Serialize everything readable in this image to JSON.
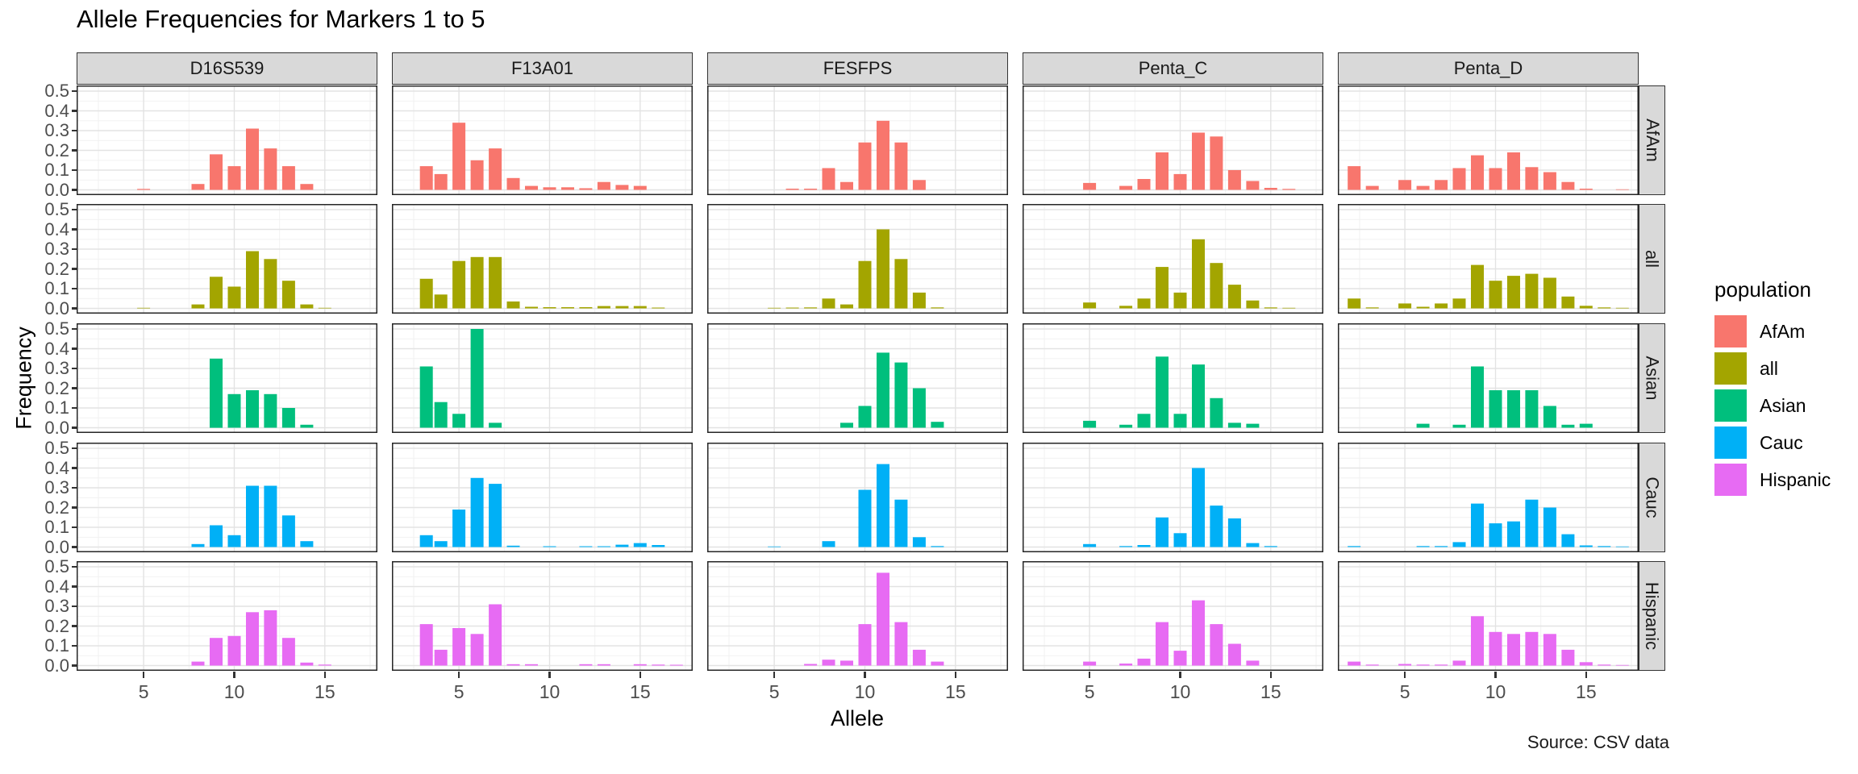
{
  "chart_data": {
    "type": "bar",
    "title": "Allele Frequencies for Markers 1 to 5",
    "xlabel": "Allele",
    "ylabel": "Frequency",
    "caption": "Source: CSV data",
    "legend_title": "population",
    "legend_position": "right",
    "grid": true,
    "facet_cols": [
      "D16S539",
      "F13A01",
      "FESFPS",
      "Penta_C",
      "Penta_D"
    ],
    "facet_rows": [
      "AfAm",
      "all",
      "Asian",
      "Cauc",
      "Hispanic"
    ],
    "colors": {
      "AfAm": "#F8766D",
      "all": "#A3A500",
      "Asian": "#00BF7D",
      "Cauc": "#00B0F6",
      "Hispanic": "#E76BF3"
    },
    "x_ticks": [
      5,
      10,
      15
    ],
    "y_ticks": [
      0.0,
      0.1,
      0.2,
      0.3,
      0.4,
      0.5
    ],
    "xlim": [
      1.3,
      17.9
    ],
    "ylim": [
      0,
      0.525
    ],
    "panels": {
      "D16S539": {
        "AfAm": {
          "alleles": [
            5,
            8,
            9,
            10,
            11,
            12,
            13,
            14
          ],
          "freqs": [
            0.005,
            0.03,
            0.18,
            0.12,
            0.31,
            0.21,
            0.12,
            0.03
          ]
        },
        "all": {
          "alleles": [
            5,
            8,
            9,
            10,
            11,
            12,
            13,
            14,
            15
          ],
          "freqs": [
            0.003,
            0.02,
            0.16,
            0.11,
            0.29,
            0.25,
            0.14,
            0.02,
            0.003
          ]
        },
        "Asian": {
          "alleles": [
            9,
            10,
            11,
            12,
            13,
            14
          ],
          "freqs": [
            0.35,
            0.17,
            0.19,
            0.17,
            0.1,
            0.015
          ]
        },
        "Cauc": {
          "alleles": [
            8,
            9,
            10,
            11,
            12,
            13,
            14
          ],
          "freqs": [
            0.015,
            0.11,
            0.06,
            0.31,
            0.31,
            0.16,
            0.03
          ]
        },
        "Hispanic": {
          "alleles": [
            8,
            9,
            10,
            11,
            12,
            13,
            14,
            15
          ],
          "freqs": [
            0.02,
            0.14,
            0.15,
            0.27,
            0.28,
            0.14,
            0.015,
            0.005
          ]
        }
      },
      "F13A01": {
        "AfAm": {
          "alleles": [
            3.2,
            4,
            5,
            6,
            7,
            8,
            9,
            10,
            11,
            12,
            13,
            14,
            15
          ],
          "freqs": [
            0.12,
            0.08,
            0.34,
            0.15,
            0.21,
            0.06,
            0.02,
            0.013,
            0.013,
            0.008,
            0.04,
            0.025,
            0.02
          ]
        },
        "all": {
          "alleles": [
            3.2,
            4,
            5,
            6,
            7,
            8,
            9,
            10,
            11,
            12,
            13,
            14,
            15,
            16
          ],
          "freqs": [
            0.15,
            0.07,
            0.24,
            0.26,
            0.26,
            0.035,
            0.008,
            0.006,
            0.006,
            0.006,
            0.012,
            0.012,
            0.012,
            0.004
          ]
        },
        "Asian": {
          "alleles": [
            3.2,
            4,
            5,
            6,
            7
          ],
          "freqs": [
            0.31,
            0.13,
            0.07,
            0.5,
            0.025
          ]
        },
        "Cauc": {
          "alleles": [
            3.2,
            4,
            5,
            6,
            7,
            8,
            10,
            12,
            13,
            14,
            15,
            16
          ],
          "freqs": [
            0.06,
            0.03,
            0.19,
            0.35,
            0.32,
            0.007,
            0.004,
            0.004,
            0.004,
            0.012,
            0.02,
            0.01
          ]
        },
        "Hispanic": {
          "alleles": [
            3.2,
            4,
            5,
            6,
            7,
            8,
            9,
            12,
            13,
            15,
            16,
            17
          ],
          "freqs": [
            0.21,
            0.08,
            0.19,
            0.16,
            0.31,
            0.007,
            0.007,
            0.007,
            0.007,
            0.007,
            0.005,
            0.004
          ]
        }
      },
      "FESFPS": {
        "AfAm": {
          "alleles": [
            6,
            7,
            8,
            9,
            10,
            11,
            12,
            13
          ],
          "freqs": [
            0.006,
            0.006,
            0.11,
            0.04,
            0.24,
            0.35,
            0.24,
            0.05
          ]
        },
        "all": {
          "alleles": [
            5,
            6,
            7,
            8,
            9,
            10,
            11,
            12,
            13,
            14
          ],
          "freqs": [
            0.003,
            0.004,
            0.005,
            0.05,
            0.02,
            0.24,
            0.4,
            0.25,
            0.08,
            0.005
          ]
        },
        "Asian": {
          "alleles": [
            9,
            10,
            11,
            12,
            13,
            14
          ],
          "freqs": [
            0.025,
            0.11,
            0.38,
            0.33,
            0.2,
            0.03
          ]
        },
        "Cauc": {
          "alleles": [
            5,
            8,
            10,
            11,
            12,
            13,
            14
          ],
          "freqs": [
            0.003,
            0.03,
            0.29,
            0.42,
            0.24,
            0.05,
            0.005
          ]
        },
        "Hispanic": {
          "alleles": [
            7,
            8,
            9,
            10,
            11,
            12,
            13,
            14
          ],
          "freqs": [
            0.008,
            0.03,
            0.025,
            0.21,
            0.47,
            0.22,
            0.08,
            0.02
          ]
        }
      },
      "Penta_C": {
        "AfAm": {
          "alleles": [
            5,
            7,
            8,
            9,
            10,
            11,
            12,
            13,
            14,
            15,
            16
          ],
          "freqs": [
            0.035,
            0.02,
            0.055,
            0.19,
            0.08,
            0.29,
            0.27,
            0.1,
            0.045,
            0.01,
            0.005
          ]
        },
        "all": {
          "alleles": [
            5,
            7,
            8,
            9,
            10,
            11,
            12,
            13,
            14,
            15,
            16
          ],
          "freqs": [
            0.03,
            0.013,
            0.05,
            0.21,
            0.08,
            0.35,
            0.23,
            0.12,
            0.04,
            0.005,
            0.003
          ]
        },
        "Asian": {
          "alleles": [
            5,
            7,
            8,
            9,
            10,
            11,
            12,
            13,
            14
          ],
          "freqs": [
            0.035,
            0.015,
            0.07,
            0.36,
            0.07,
            0.32,
            0.15,
            0.025,
            0.02
          ]
        },
        "Cauc": {
          "alleles": [
            5,
            7,
            8,
            9,
            10,
            11,
            12,
            13,
            14,
            15
          ],
          "freqs": [
            0.015,
            0.005,
            0.01,
            0.15,
            0.07,
            0.4,
            0.21,
            0.145,
            0.02,
            0.005
          ]
        },
        "Hispanic": {
          "alleles": [
            5,
            7,
            8,
            9,
            10,
            11,
            12,
            13,
            14
          ],
          "freqs": [
            0.02,
            0.01,
            0.035,
            0.22,
            0.075,
            0.33,
            0.21,
            0.11,
            0.025
          ]
        }
      },
      "Penta_D": {
        "AfAm": {
          "alleles": [
            2.2,
            3.2,
            5,
            6,
            7,
            8,
            9,
            10,
            11,
            12,
            13,
            14,
            15,
            17
          ],
          "freqs": [
            0.12,
            0.02,
            0.05,
            0.02,
            0.05,
            0.11,
            0.175,
            0.11,
            0.19,
            0.115,
            0.09,
            0.04,
            0.006,
            0.003
          ]
        },
        "all": {
          "alleles": [
            2.2,
            3.2,
            5,
            6,
            7,
            8,
            9,
            10,
            11,
            12,
            13,
            14,
            15,
            16,
            17
          ],
          "freqs": [
            0.05,
            0.005,
            0.025,
            0.008,
            0.025,
            0.05,
            0.22,
            0.14,
            0.165,
            0.175,
            0.155,
            0.06,
            0.013,
            0.005,
            0.003
          ]
        },
        "Asian": {
          "alleles": [
            6,
            8,
            9,
            10,
            11,
            12,
            13,
            14,
            15
          ],
          "freqs": [
            0.02,
            0.015,
            0.31,
            0.19,
            0.19,
            0.19,
            0.11,
            0.015,
            0.02
          ]
        },
        "Cauc": {
          "alleles": [
            2.2,
            6,
            7,
            8,
            9,
            10,
            11,
            12,
            13,
            14,
            15,
            16,
            17
          ],
          "freqs": [
            0.005,
            0.005,
            0.005,
            0.025,
            0.22,
            0.12,
            0.13,
            0.24,
            0.2,
            0.065,
            0.008,
            0.005,
            0.003
          ]
        },
        "Hispanic": {
          "alleles": [
            2.2,
            3.2,
            5,
            6,
            7,
            8,
            9,
            10,
            11,
            12,
            13,
            14,
            15,
            16,
            17
          ],
          "freqs": [
            0.02,
            0.005,
            0.008,
            0.005,
            0.005,
            0.025,
            0.25,
            0.17,
            0.16,
            0.17,
            0.16,
            0.08,
            0.017,
            0.005,
            0.003
          ]
        }
      }
    }
  }
}
